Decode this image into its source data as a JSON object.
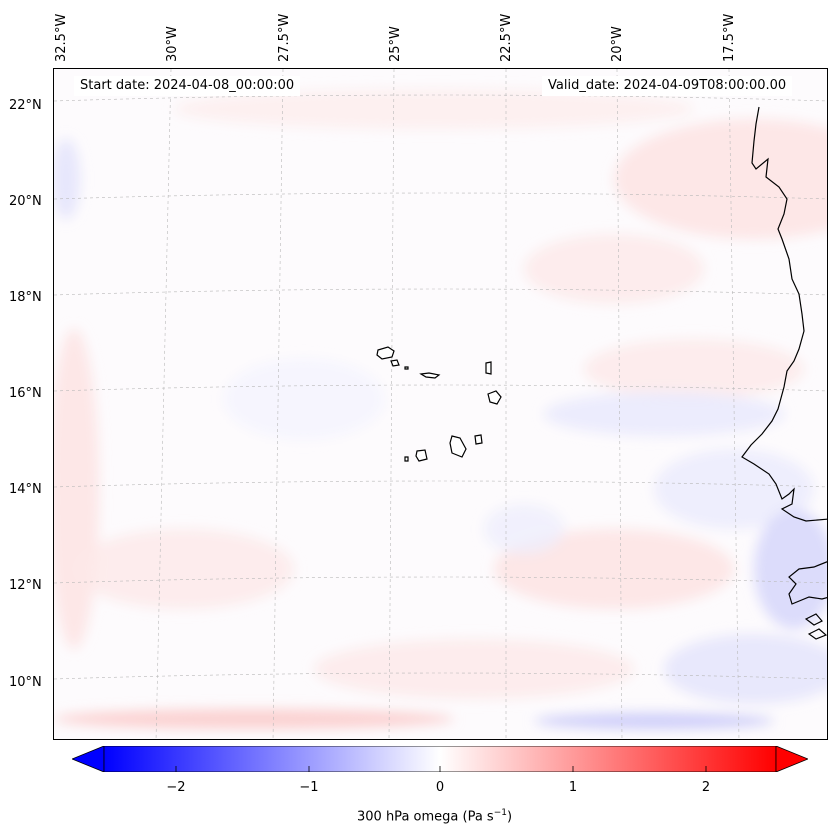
{
  "map": {
    "start_date": "Start date: 2024-04-08_00:00:00",
    "valid_date": "Valid_date: 2024-04-09T08:00:00.00",
    "lon_labels": [
      "32.5°W",
      "30°W",
      "27.5°W",
      "25°W",
      "22.5°W",
      "20°W",
      "17.5°W"
    ],
    "lat_labels": [
      "22°N",
      "20°N",
      "18°N",
      "16°N",
      "14°N",
      "12°N",
      "10°N"
    ],
    "field": "300 hPa omega",
    "colormap": "bwr",
    "coastline_color": "#000000",
    "gridlines": "dashed"
  },
  "colorbar": {
    "ticks": [
      "−2",
      "−1",
      "0",
      "1",
      "2"
    ],
    "label": "300 hPa omega (Pa s",
    "label_unit_exp": "−1",
    "label_close": ")",
    "range": [
      -2.6,
      2.6
    ],
    "extend": "both",
    "colors": {
      "min": "#0000ff",
      "mid": "#ffffff",
      "max": "#ff0000"
    }
  }
}
